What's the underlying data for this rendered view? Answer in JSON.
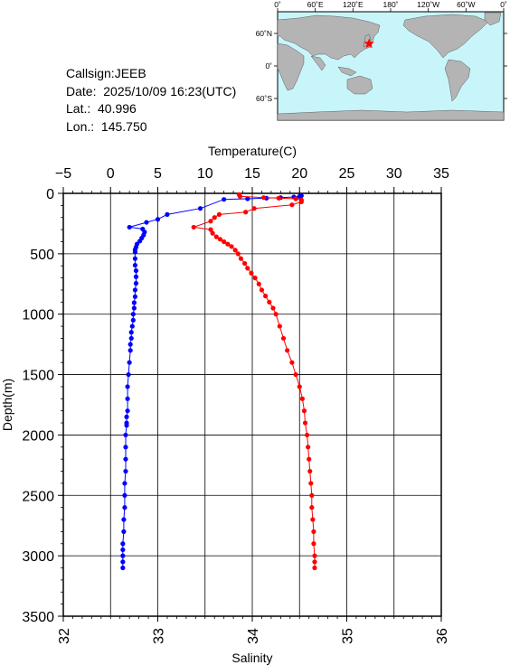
{
  "info": {
    "callsign": "Callsign:JEEB",
    "date": "Date:  2025/10/09 16:23(UTC)",
    "lat": "Lat.:  40.996",
    "lon": "Lon.:  145.750"
  },
  "map": {
    "lon_ticks": [
      "0˚",
      "60˚E",
      "120˚E",
      "180˚",
      "120˚W",
      "60˚W",
      "0˚"
    ],
    "lat_ticks": [
      "60˚N",
      "0˚",
      "60˚S"
    ],
    "ocean_color": "#c8f5fa",
    "land_color": "#b4b4b4",
    "marker": {
      "lat": 40.996,
      "lon": 145.75,
      "shape": "star",
      "color": "#ff0000"
    }
  },
  "chart_data": {
    "type": "line",
    "ylabel": "Depth(m)",
    "ylim": [
      0,
      3500
    ],
    "y_inverted": true,
    "y_ticks": [
      "0",
      "500",
      "1000",
      "1500",
      "2000",
      "2500",
      "3000",
      "3500"
    ],
    "top_axis": {
      "label": "Temperature(C)",
      "lim": [
        -5,
        35
      ],
      "ticks": [
        "−5",
        "0",
        "5",
        "10",
        "15",
        "20",
        "25",
        "30",
        "35"
      ]
    },
    "bottom_axis": {
      "label": "Salinity",
      "lim": [
        32,
        36
      ],
      "ticks": [
        "32",
        "33",
        "34",
        "35",
        "36"
      ]
    },
    "grid": true,
    "series": [
      {
        "color": "#0000ff",
        "axis": "top",
        "points": [
          [
            20.2,
            20
          ],
          [
            20.0,
            25
          ],
          [
            19.4,
            30
          ],
          [
            18.0,
            35
          ],
          [
            16.5,
            40
          ],
          [
            14.5,
            45
          ],
          [
            12.0,
            50
          ],
          [
            9.5,
            125
          ],
          [
            6.0,
            175
          ],
          [
            5.0,
            215
          ],
          [
            3.8,
            240
          ],
          [
            2.0,
            280
          ],
          [
            3.4,
            295
          ],
          [
            3.6,
            320
          ],
          [
            3.5,
            345
          ],
          [
            3.3,
            370
          ],
          [
            3.1,
            395
          ],
          [
            2.8,
            420
          ],
          [
            2.7,
            445
          ],
          [
            2.6,
            465
          ],
          [
            2.6,
            485
          ],
          [
            2.6,
            540
          ],
          [
            2.6,
            595
          ],
          [
            2.7,
            640
          ],
          [
            2.7,
            690
          ],
          [
            2.7,
            745
          ],
          [
            2.6,
            800
          ],
          [
            2.6,
            855
          ],
          [
            2.5,
            905
          ],
          [
            2.5,
            950
          ],
          [
            2.4,
            1000
          ],
          [
            2.4,
            1050
          ],
          [
            2.3,
            1100
          ],
          [
            2.2,
            1150
          ],
          [
            2.2,
            1200
          ],
          [
            2.1,
            1250
          ],
          [
            2.1,
            1300
          ],
          [
            2.0,
            1400
          ],
          [
            1.9,
            1500
          ],
          [
            1.8,
            1600
          ],
          [
            1.8,
            1700
          ],
          [
            1.8,
            1800
          ],
          [
            1.7,
            1850
          ],
          [
            1.7,
            1900
          ],
          [
            1.7,
            1920
          ],
          [
            1.6,
            2000
          ],
          [
            1.6,
            2100
          ],
          [
            1.6,
            2200
          ],
          [
            1.6,
            2300
          ],
          [
            1.5,
            2400
          ],
          [
            1.5,
            2500
          ],
          [
            1.5,
            2600
          ],
          [
            1.4,
            2700
          ],
          [
            1.4,
            2800
          ],
          [
            1.3,
            2900
          ],
          [
            1.3,
            2950
          ],
          [
            1.3,
            3000
          ],
          [
            1.3,
            3050
          ],
          [
            1.3,
            3100
          ]
        ]
      },
      {
        "color": "#ff0000",
        "axis": "bottom",
        "points": [
          [
            33.86,
            10
          ],
          [
            33.87,
            25
          ],
          [
            34.12,
            35
          ],
          [
            34.28,
            40
          ],
          [
            34.46,
            45
          ],
          [
            34.52,
            55
          ],
          [
            34.52,
            70
          ],
          [
            34.42,
            95
          ],
          [
            34.02,
            125
          ],
          [
            33.93,
            155
          ],
          [
            33.65,
            175
          ],
          [
            33.6,
            200
          ],
          [
            33.56,
            230
          ],
          [
            33.38,
            280
          ],
          [
            33.56,
            300
          ],
          [
            33.58,
            330
          ],
          [
            33.62,
            360
          ],
          [
            33.66,
            380
          ],
          [
            33.7,
            400
          ],
          [
            33.74,
            420
          ],
          [
            33.78,
            440
          ],
          [
            33.82,
            470
          ],
          [
            33.85,
            500
          ],
          [
            33.88,
            540
          ],
          [
            33.92,
            580
          ],
          [
            33.95,
            620
          ],
          [
            33.99,
            660
          ],
          [
            34.03,
            700
          ],
          [
            34.07,
            750
          ],
          [
            34.1,
            800
          ],
          [
            34.14,
            850
          ],
          [
            34.18,
            900
          ],
          [
            34.22,
            950
          ],
          [
            34.25,
            1000
          ],
          [
            34.29,
            1100
          ],
          [
            34.33,
            1200
          ],
          [
            34.37,
            1300
          ],
          [
            34.42,
            1400
          ],
          [
            34.46,
            1500
          ],
          [
            34.5,
            1600
          ],
          [
            34.53,
            1700
          ],
          [
            34.55,
            1800
          ],
          [
            34.56,
            1900
          ],
          [
            34.58,
            2000
          ],
          [
            34.59,
            2100
          ],
          [
            34.6,
            2200
          ],
          [
            34.61,
            2300
          ],
          [
            34.62,
            2400
          ],
          [
            34.63,
            2500
          ],
          [
            34.63,
            2600
          ],
          [
            34.64,
            2700
          ],
          [
            34.65,
            2800
          ],
          [
            34.65,
            2900
          ],
          [
            34.66,
            3000
          ],
          [
            34.66,
            3050
          ],
          [
            34.66,
            3100
          ]
        ]
      }
    ]
  }
}
